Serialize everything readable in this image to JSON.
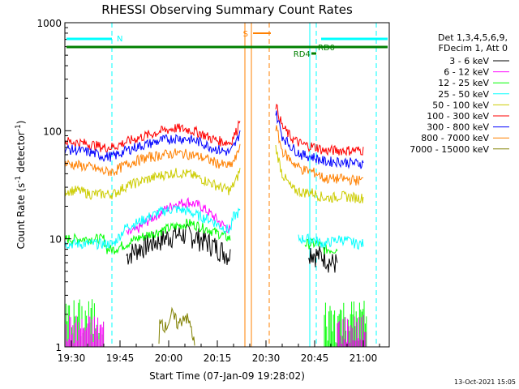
{
  "chart_data": {
    "type": "line",
    "title": "RHESSI Observing Summary Count Rates",
    "xlabel": "Start Time (07-Jan-09 19:28:02)",
    "ylabel_main": "Count Rate (s",
    "ylabel_sup1": "-1",
    "ylabel_mid": " detector",
    "ylabel_sup2": "-1",
    "ylabel_end": ")",
    "y_scale": "log",
    "ylim": [
      1,
      1000
    ],
    "y_ticks": [
      {
        "label": "1",
        "value": 1
      },
      {
        "label": "10",
        "value": 10
      },
      {
        "label": "100",
        "value": 100
      },
      {
        "label": "1000",
        "value": 1000
      }
    ],
    "xlim": [
      "19:28",
      "21:08"
    ],
    "x_ticks": [
      {
        "label": "19:30",
        "min": 2
      },
      {
        "label": "19:45",
        "min": 17
      },
      {
        "label": "20:00",
        "min": 32
      },
      {
        "label": "20:15",
        "min": 47
      },
      {
        "label": "20:30",
        "min": 62
      },
      {
        "label": "20:45",
        "min": 77
      },
      {
        "label": "21:00",
        "min": 92
      }
    ],
    "legend_header": [
      "Det 1,3,4,5,6,9,",
      "FDecim 1, Att 0"
    ],
    "legend_position": "right",
    "series": [
      {
        "name": "3 - 6 keV",
        "color": "#000000",
        "points": [
          [
            19,
            7
          ],
          [
            22,
            8
          ],
          [
            26,
            9
          ],
          [
            30,
            10
          ],
          [
            34,
            11
          ],
          [
            38,
            11
          ],
          [
            42,
            10
          ],
          [
            45,
            9
          ],
          [
            48,
            8
          ],
          [
            51,
            7
          ]
        ],
        "post": [
          [
            75,
            8
          ],
          [
            78,
            7
          ],
          [
            80,
            7
          ],
          [
            82,
            6
          ],
          [
            84,
            6
          ]
        ]
      },
      {
        "name": "6 - 12 keV",
        "color": "#ff00ff",
        "points": [
          [
            19,
            11
          ],
          [
            22,
            12
          ],
          [
            26,
            15
          ],
          [
            30,
            18
          ],
          [
            34,
            21
          ],
          [
            38,
            22
          ],
          [
            42,
            20
          ],
          [
            45,
            17
          ],
          [
            48,
            14
          ],
          [
            51,
            12
          ]
        ]
      },
      {
        "name": "12 - 25 keV",
        "color": "#00ff00",
        "points": [
          [
            0,
            10
          ],
          [
            12,
            10
          ],
          [
            13,
            8
          ],
          [
            15,
            8
          ],
          [
            19,
            9
          ],
          [
            22,
            10
          ],
          [
            26,
            11
          ],
          [
            30,
            12
          ],
          [
            34,
            13
          ],
          [
            38,
            14
          ],
          [
            42,
            13
          ],
          [
            45,
            12
          ],
          [
            48,
            11
          ],
          [
            51,
            10
          ]
        ],
        "post": [
          [
            74,
            9
          ],
          [
            78,
            9
          ],
          [
            80,
            8
          ],
          [
            82,
            8
          ],
          [
            84,
            8
          ]
        ]
      },
      {
        "name": "25 - 50 keV",
        "color": "#00ffff",
        "points": [
          [
            0,
            9
          ],
          [
            4,
            9
          ],
          [
            8,
            9
          ],
          [
            12,
            9
          ],
          [
            15,
            9
          ],
          [
            19,
            13
          ],
          [
            22,
            14
          ],
          [
            26,
            16
          ],
          [
            30,
            18
          ],
          [
            34,
            19
          ],
          [
            38,
            18
          ],
          [
            42,
            16
          ],
          [
            45,
            15
          ],
          [
            48,
            13
          ],
          [
            51,
            12
          ],
          [
            52,
            16
          ],
          [
            54,
            18
          ]
        ],
        "post": [
          [
            72,
            10
          ],
          [
            74,
            10
          ],
          [
            76,
            10
          ],
          [
            80,
            9
          ],
          [
            85,
            10
          ],
          [
            90,
            9
          ],
          [
            92,
            9
          ]
        ]
      },
      {
        "name": "50 - 100 keV",
        "color": "#cccc00",
        "points": [
          [
            0,
            28
          ],
          [
            4,
            28
          ],
          [
            8,
            26
          ],
          [
            12,
            26
          ],
          [
            15,
            26
          ],
          [
            19,
            31
          ],
          [
            22,
            33
          ],
          [
            26,
            36
          ],
          [
            30,
            39
          ],
          [
            34,
            41
          ],
          [
            38,
            40
          ],
          [
            42,
            36
          ],
          [
            45,
            33
          ],
          [
            48,
            30
          ],
          [
            51,
            28
          ],
          [
            53,
            36
          ],
          [
            54,
            44
          ]
        ],
        "post": [
          [
            65,
            70
          ],
          [
            67,
            40
          ],
          [
            70,
            29
          ],
          [
            73,
            27
          ],
          [
            76,
            27
          ],
          [
            80,
            24
          ],
          [
            82,
            24
          ],
          [
            85,
            25
          ],
          [
            90,
            24
          ],
          [
            92,
            24
          ]
        ]
      },
      {
        "name": "100 - 300 keV",
        "color": "#ff0000",
        "points": [
          [
            0,
            80
          ],
          [
            4,
            78
          ],
          [
            8,
            75
          ],
          [
            12,
            70
          ],
          [
            15,
            71
          ],
          [
            19,
            79
          ],
          [
            22,
            85
          ],
          [
            26,
            92
          ],
          [
            30,
            100
          ],
          [
            34,
            106
          ],
          [
            38,
            103
          ],
          [
            42,
            95
          ],
          [
            45,
            85
          ],
          [
            48,
            80
          ],
          [
            51,
            78
          ],
          [
            53,
            100
          ],
          [
            54,
            135
          ]
        ],
        "post": [
          [
            65,
            175
          ],
          [
            67,
            110
          ],
          [
            70,
            85
          ],
          [
            73,
            75
          ],
          [
            76,
            72
          ],
          [
            78,
            70
          ],
          [
            80,
            65
          ],
          [
            82,
            66
          ],
          [
            85,
            66
          ],
          [
            90,
            66
          ],
          [
            92,
            66
          ]
        ]
      },
      {
        "name": "300 - 800 keV",
        "color": "#0000ff",
        "points": [
          [
            0,
            68
          ],
          [
            4,
            66
          ],
          [
            8,
            63
          ],
          [
            12,
            58
          ],
          [
            15,
            58
          ],
          [
            19,
            66
          ],
          [
            22,
            71
          ],
          [
            26,
            76
          ],
          [
            30,
            82
          ],
          [
            34,
            86
          ],
          [
            38,
            84
          ],
          [
            42,
            78
          ],
          [
            45,
            71
          ],
          [
            48,
            66
          ],
          [
            51,
            63
          ],
          [
            53,
            80
          ],
          [
            54,
            100
          ]
        ],
        "post": [
          [
            65,
            150
          ],
          [
            67,
            90
          ],
          [
            70,
            70
          ],
          [
            73,
            60
          ],
          [
            76,
            58
          ],
          [
            78,
            55
          ],
          [
            80,
            52
          ],
          [
            82,
            52
          ],
          [
            85,
            52
          ],
          [
            90,
            50
          ],
          [
            92,
            50
          ]
        ]
      },
      {
        "name": "800 - 7000 keV",
        "color": "#ff8000",
        "points": [
          [
            0,
            50
          ],
          [
            4,
            48
          ],
          [
            8,
            46
          ],
          [
            12,
            42
          ],
          [
            15,
            42
          ],
          [
            19,
            49
          ],
          [
            22,
            53
          ],
          [
            26,
            57
          ],
          [
            30,
            60
          ],
          [
            34,
            62
          ],
          [
            38,
            61
          ],
          [
            42,
            57
          ],
          [
            45,
            53
          ],
          [
            48,
            49
          ],
          [
            51,
            47
          ],
          [
            53,
            58
          ],
          [
            54,
            75
          ]
        ],
        "post": [
          [
            65,
            110
          ],
          [
            67,
            65
          ],
          [
            70,
            52
          ],
          [
            73,
            44
          ],
          [
            76,
            42
          ],
          [
            78,
            40
          ],
          [
            80,
            36
          ],
          [
            82,
            36
          ],
          [
            85,
            36
          ],
          [
            90,
            35
          ],
          [
            92,
            35
          ]
        ]
      },
      {
        "name": "7000 - 15000 keV",
        "color": "#808000",
        "points": [
          [
            29,
            1
          ],
          [
            29,
            2
          ],
          [
            31,
            1.5
          ],
          [
            33,
            2
          ],
          [
            35,
            1.6
          ],
          [
            37,
            2
          ],
          [
            39,
            1.5
          ],
          [
            40,
            1
          ]
        ]
      }
    ],
    "annotations": [
      {
        "text": "N",
        "color": "#00ffff"
      },
      {
        "text": "S",
        "color": "#ff8000"
      },
      {
        "text": "RD4",
        "color": "#008000"
      },
      {
        "text": "RD0",
        "color": "#008000"
      }
    ],
    "timestamp": "13-Oct-2021 15:05"
  }
}
